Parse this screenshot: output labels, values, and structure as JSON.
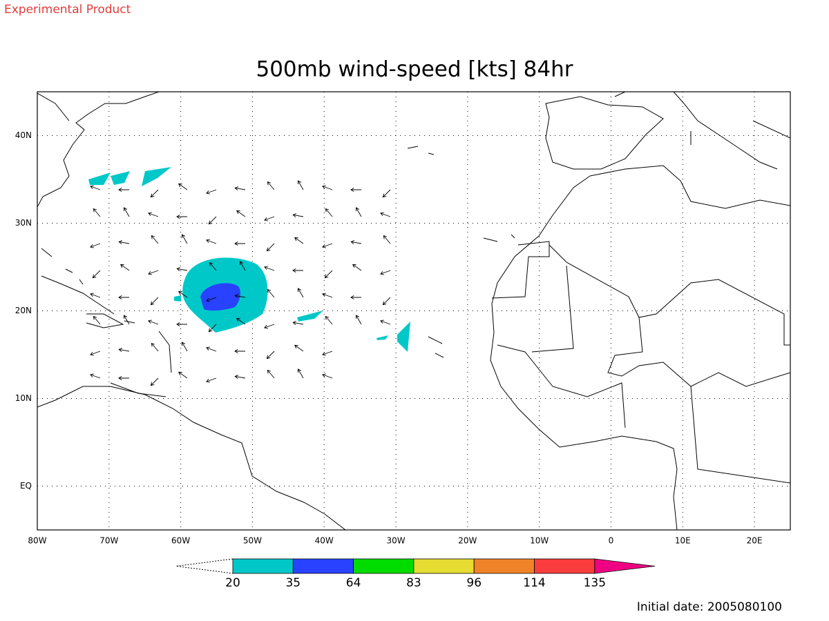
{
  "header": {
    "label": "Experimental Product"
  },
  "map": {
    "title": "500mb wind-speed [kts] 84hr",
    "lon_range": [
      -80,
      25
    ],
    "lat_range": [
      -5,
      45
    ],
    "lon_ticks": [
      {
        "value": -80,
        "label": "80W"
      },
      {
        "value": -70,
        "label": "70W"
      },
      {
        "value": -60,
        "label": "60W"
      },
      {
        "value": -50,
        "label": "50W"
      },
      {
        "value": -40,
        "label": "40W"
      },
      {
        "value": -30,
        "label": "30W"
      },
      {
        "value": -20,
        "label": "20W"
      },
      {
        "value": -10,
        "label": "10W"
      },
      {
        "value": 0,
        "label": "0"
      },
      {
        "value": 10,
        "label": "10E"
      },
      {
        "value": 20,
        "label": "20E"
      }
    ],
    "lat_ticks": [
      {
        "value": 0,
        "label": "EQ"
      },
      {
        "value": 10,
        "label": "10N"
      },
      {
        "value": 20,
        "label": "20N"
      },
      {
        "value": 30,
        "label": "30N"
      },
      {
        "value": 40,
        "label": "40N"
      }
    ]
  },
  "colorbar": {
    "levels": [
      20,
      35,
      64,
      83,
      96,
      114,
      135
    ],
    "colors": [
      "#00c8c8",
      "#2842ff",
      "#00dc00",
      "#e6dc32",
      "#f08228",
      "#fa3c3c",
      "#f00082"
    ]
  },
  "footer": {
    "initial_date": "Initial date: 2005080100"
  }
}
